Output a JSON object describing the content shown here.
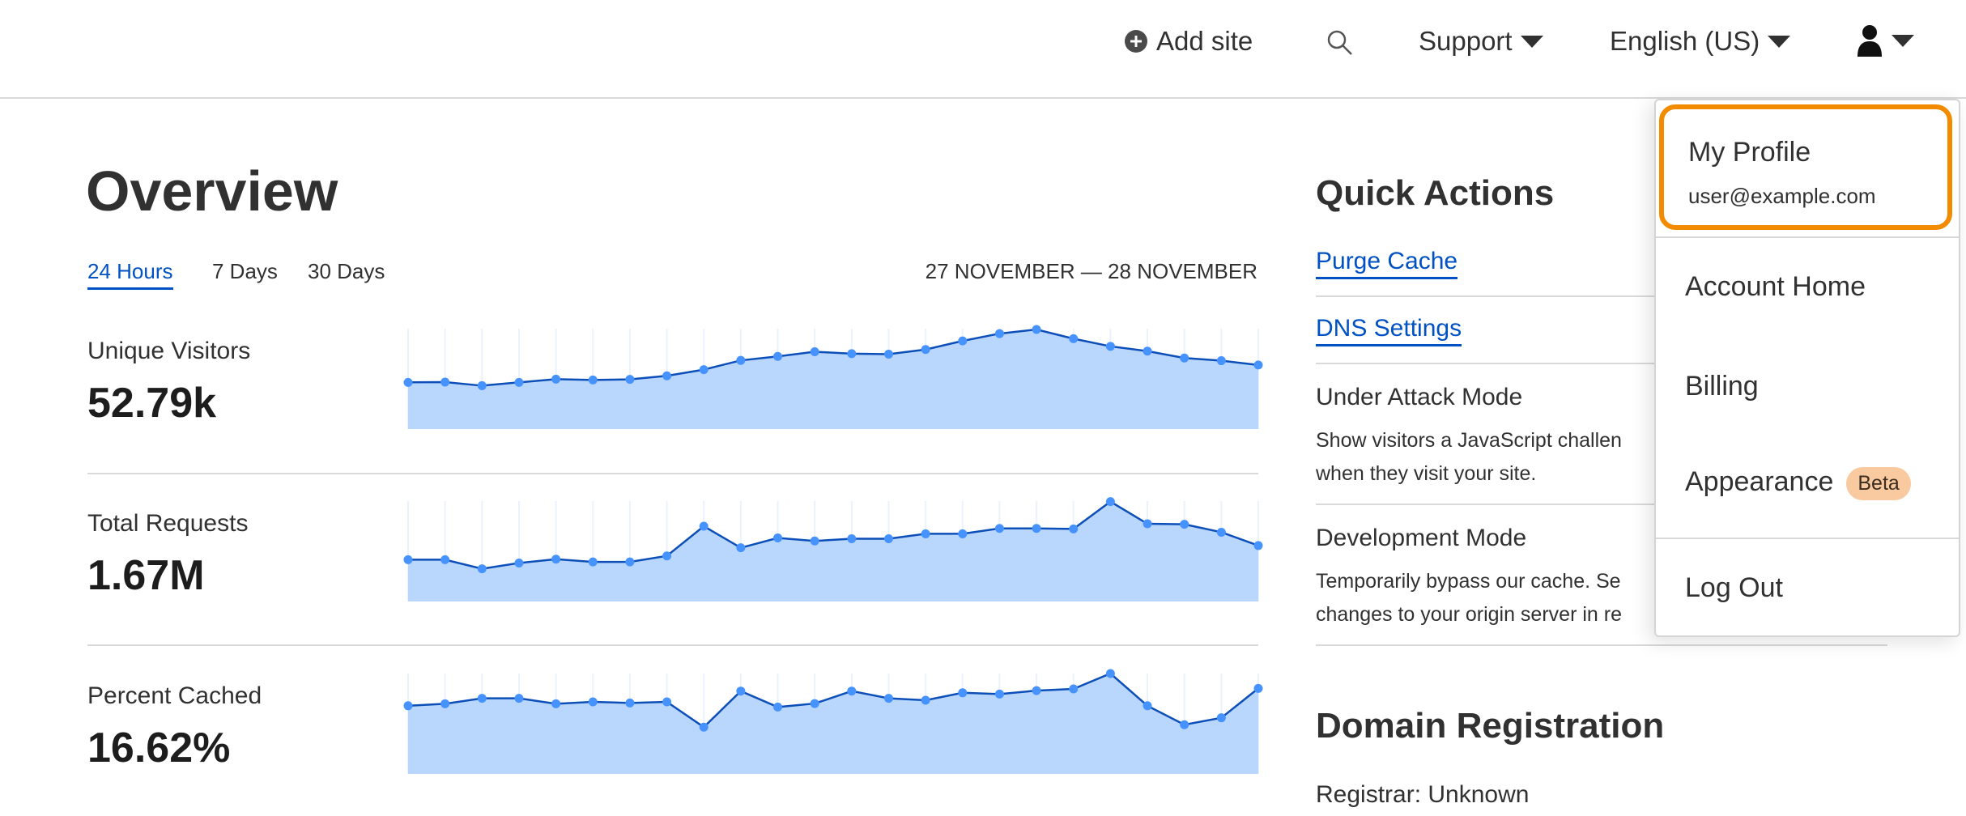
{
  "header": {
    "add_site": "Add site",
    "support": "Support",
    "language": "English (US)",
    "icons": [
      "plus-circle-icon",
      "search-icon",
      "caret-down-icon",
      "user-icon"
    ]
  },
  "overview": {
    "title": "Overview",
    "tabs": [
      {
        "label": "24 Hours",
        "active": true
      },
      {
        "label": "7 Days",
        "active": false
      },
      {
        "label": "30 Days",
        "active": false
      }
    ],
    "date_range": "27 NOVEMBER — 28 NOVEMBER",
    "metrics": [
      {
        "label": "Unique Visitors",
        "value": "52.79k"
      },
      {
        "label": "Total Requests",
        "value": "1.67M"
      },
      {
        "label": "Percent Cached",
        "value": "16.62%"
      }
    ]
  },
  "chart_data": [
    {
      "type": "area",
      "title": "",
      "values": [
        46.5,
        46.8,
        43.2,
        46.5,
        49.7,
        48.9,
        49.5,
        53,
        59.2,
        68.4,
        72.4,
        77,
        75.1,
        74.6,
        79.2,
        87.8,
        95.1,
        99.2,
        90,
        82.4,
        77.6,
        70.8,
        68.1,
        63.8
      ],
      "ylim": [
        0,
        100
      ],
      "grid": "vertical",
      "color": "#4693ff",
      "fill": "#b9d6fd",
      "line": "#0d4fb8"
    },
    {
      "type": "area",
      "title": "",
      "values": [
        41.6,
        41.6,
        32.6,
        38.3,
        42.1,
        39.4,
        39.4,
        45.4,
        75,
        53.5,
        63.3,
        60.3,
        62.5,
        62.5,
        67.4,
        67.4,
        72.8,
        72.8,
        72.3,
        99.5,
        77.4,
        76.9,
        69,
        55.7
      ],
      "ylim": [
        0,
        100
      ],
      "grid": "vertical",
      "color": "#4693ff",
      "fill": "#b9d6fd",
      "line": "#0d4fb8"
    },
    {
      "type": "area",
      "title": "",
      "values": [
        67.9,
        69.9,
        75.3,
        75.3,
        69.9,
        71.8,
        70.7,
        71.8,
        46.6,
        82.5,
        66.6,
        70.1,
        82.5,
        75.3,
        73.4,
        80.8,
        79.5,
        83,
        84.7,
        100,
        67.9,
        49,
        55.9,
        85.2
      ],
      "ylim": [
        0,
        100
      ],
      "grid": "vertical",
      "color": "#4693ff",
      "fill": "#b9d6fd",
      "line": "#0d4fb8"
    }
  ],
  "quick_actions": {
    "title": "Quick Actions",
    "links": [
      "Purge Cache",
      "DNS Settings"
    ],
    "under_attack": {
      "title": "Under Attack Mode",
      "desc1": "Show visitors a JavaScript challen",
      "desc2": "when they visit your site."
    },
    "dev_mode": {
      "title": "Development Mode",
      "desc1": "Temporarily bypass our cache. Se",
      "desc2": "changes to your origin server in re"
    }
  },
  "domain_registration": {
    "title": "Domain Registration",
    "registrar": "Registrar: Unknown"
  },
  "user_menu": {
    "profile_label": "My Profile",
    "email": "user@example.com",
    "items": [
      "Account Home",
      "Billing",
      "Appearance",
      "Log Out"
    ],
    "beta_badge": "Beta",
    "highlight_color": "#f38b00"
  }
}
